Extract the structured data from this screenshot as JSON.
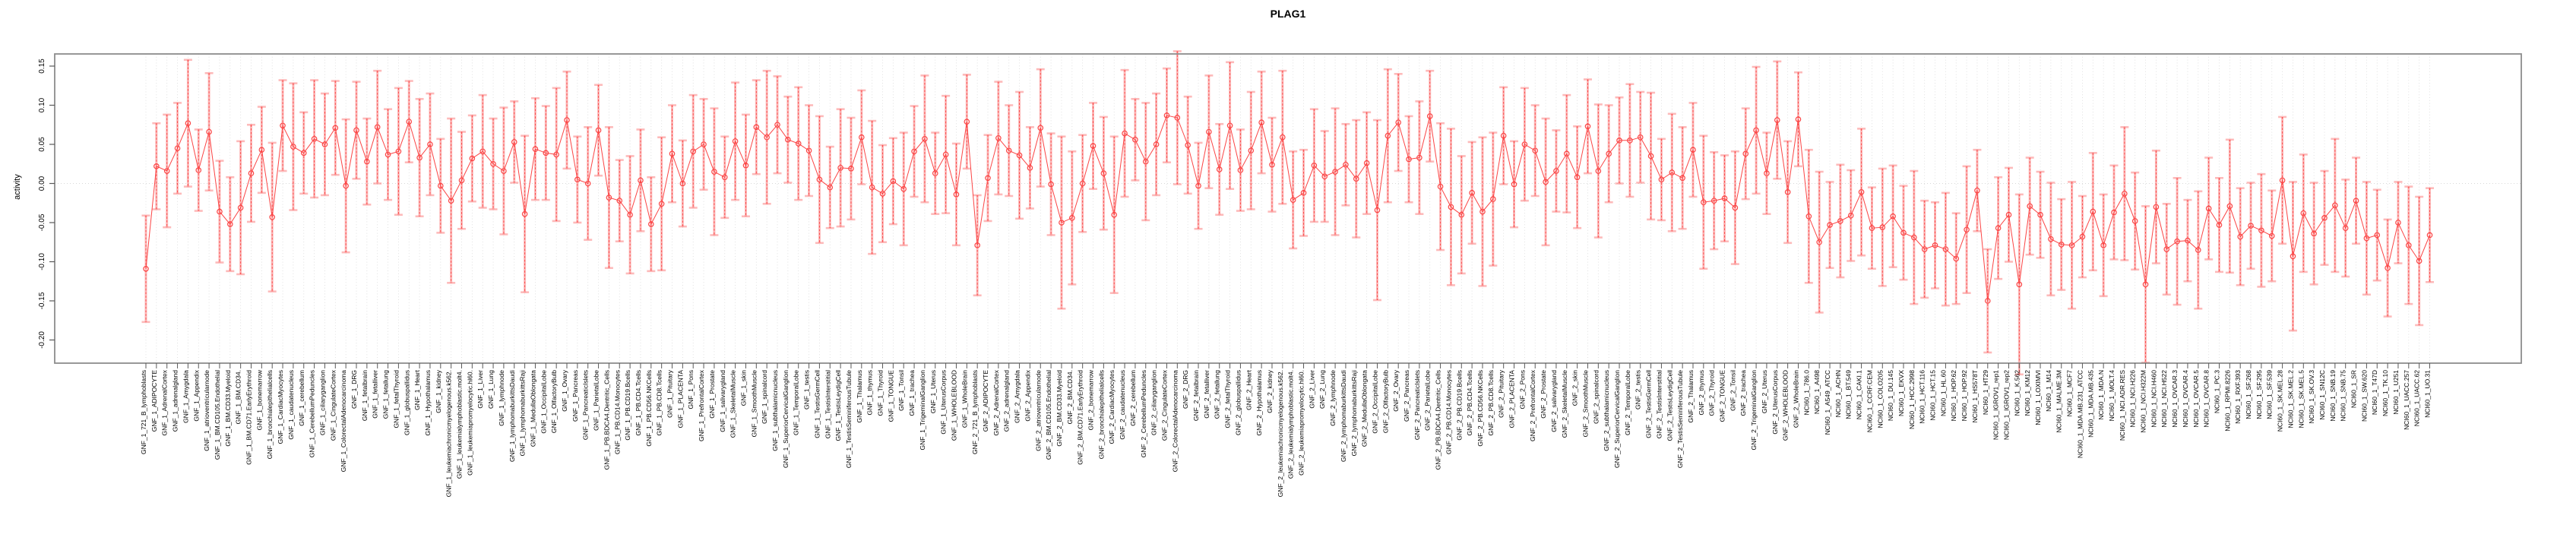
{
  "title": "PLAG1",
  "y_axis": {
    "label": "activity",
    "tick_labels": [
      "0.15",
      "0.10",
      "0.05",
      "0.00",
      "-0.05",
      "-0.10",
      "-0.15",
      "-0.20"
    ]
  },
  "colors": {
    "series_red": "#fb4545",
    "errorbar_pale": "rgba(251,90,90,0.42)",
    "grid_gray": "#d9d9d9",
    "zero_line_gray": "#cccccc",
    "box_gray": "#8c8c8c",
    "text_black": "#000000"
  },
  "chart_data": {
    "type": "line",
    "title": "PLAG1",
    "xlabel": "",
    "ylabel": "activity",
    "ylim": [
      -0.231,
      0.165
    ],
    "y_ticks": [
      0.15,
      0.1,
      0.05,
      0.0,
      -0.05,
      -0.1,
      -0.15,
      -0.2
    ],
    "grid": "vertical-dotted-per-category",
    "zero_line": "dotted",
    "legend": "none",
    "marker": "open-circle",
    "error_bars": true,
    "categories": [
      "GNF_1_721_B_lymphoblasts",
      "GNF_1_ADIPOCYTE",
      "GNF_1_AdrenalCortex",
      "GNF_1_adrenalgland",
      "GNF_1_Amygdala",
      "GNF_1_Appendix",
      "GNF_1_atrioventricularnode",
      "GNF_1_BM.CD105.Endothelial",
      "GNF_1_BM.CD33.Myeloid",
      "GNF_1_BM.CD34.",
      "GNF_1_BM.CD71.EarlyErythroid",
      "GNF_1_bonemarrow",
      "GNF_1_bronchialepithelialcells",
      "GNF_1_CardiacMyocytes",
      "GNF_1_caudatenucleus",
      "GNF_1_cerebellum",
      "GNF_1_CerebellumPeduncles",
      "GNF_1_ciliaryganglion",
      "GNF_1_CingulateCortex",
      "GNF_1_ColorectalAdenocarcinoma",
      "GNF_1_DRG",
      "GNF_1_fetalbrain",
      "GNF_1_fetalliver",
      "GNF_1_fetallung",
      "GNF_1_fetalThyroid",
      "GNF_1_globuspallidus",
      "GNF_1_Heart",
      "GNF_1_Hypothalamus",
      "GNF_1_kidney",
      "GNF_1_leukemiachronicmyelogenous.k562.",
      "GNF_1_leukemialymphoblastic.molt4.",
      "GNF_1_leukemiapromyelocytic.hl60.",
      "GNF_1_Liver",
      "GNF_1_Lung",
      "GNF_1_lymphnode",
      "GNF_1_lymphomaburkittsDaudi",
      "GNF_1_lymphomaburkittsRaji",
      "GNF_1_MedullaOblongata",
      "GNF_1_OccipitalLobe",
      "GNF_1_OlfactoryBulb",
      "GNF_1_Ovary",
      "GNF_1_Pancreas",
      "GNF_1_PancreaticIslets",
      "GNF_1_ParietalLobe",
      "GNF_1_PB.BDCA4.Dentritic_Cells",
      "GNF_1_PB.CD14.Monocytes",
      "GNF_1_PB.CD19.Bcells",
      "GNF_1_PB.CD4.Tcells",
      "GNF_1_PB.CD56.NKCells",
      "GNF_1_PB.CD8.Tcells",
      "GNF_1_Pituitary",
      "GNF_1_PLACENTA",
      "GNF_1_Pons",
      "GNF_1_PrefrontalCortex",
      "GNF_1_Prostate",
      "GNF_1_salivarygland",
      "GNF_1_SkeletalMuscle",
      "GNF_1_skin",
      "GNF_1_SmoothMuscle",
      "GNF_1_spinalcord",
      "GNF_1_subthalamicnucleus",
      "GNF_1_SuperiorCervicalGanglion",
      "GNF_1_TemporalLobe",
      "GNF_1_testis",
      "GNF_1_TestisGermCell",
      "GNF_1_TestisInterstitial",
      "GNF_1_TestisLeydigCell",
      "GNF_1_TestisSeminiferousTubule",
      "GNF_1_Thalamus",
      "GNF_1_thymus",
      "GNF_1_Thyroid",
      "GNF_1_TONGUE",
      "GNF_1_Tonsil",
      "GNF_1_trachea",
      "GNF_1_TrigeminalGanglion",
      "GNF_1_Uterus",
      "GNF_1_UterusCorpus",
      "GNF_1_WHOLEBLOOD",
      "GNF_1_WholeBrain",
      "GNF_2_721_B_lymphoblasts",
      "GNF_2_ADIPOCYTE",
      "GNF_2_AdrenalCortex",
      "GNF_2_adrenalgland",
      "GNF_2_Amygdala",
      "GNF_2_Appendix",
      "GNF_2_atrioventricularnode",
      "GNF_2_BM.CD105.Endothelial",
      "GNF_2_BM.CD33.Myeloid",
      "GNF_2_BM.CD34.",
      "GNF_2_BM.CD71.EarlyErythroid",
      "GNF_2_bonemarrow",
      "GNF_2_bronchialepithelialcells",
      "GNF_2_CardiacMyocytes",
      "GNF_2_caudatenucleus",
      "GNF_2_cerebellum",
      "GNF_2_CerebellumPeduncles",
      "GNF_2_ciliaryganglion",
      "GNF_2_CingulateCortex",
      "GNF_2_ColorectalAdenocarcinoma",
      "GNF_2_DRG",
      "GNF_2_fetalbrain",
      "GNF_2_fetalliver",
      "GNF_2_fetallung",
      "GNF_2_fetalThyroid",
      "GNF_2_globuspallidus",
      "GNF_2_Heart",
      "GNF_2_Hypothalamus",
      "GNF_2_kidney",
      "GNF_2_leukemiachronicmyelogenous.k562.",
      "GNF_2_leukemialymphoblastic.molt4.",
      "GNF_2_leukemiapromyelocytic.hl60.",
      "GNF_2_Liver",
      "GNF_2_Lung",
      "GNF_2_lymphnode",
      "GNF_2_lymphomaburkittsDaudi",
      "GNF_2_lymphomaburkittsRaji",
      "GNF_2_MedullaOblongata",
      "GNF_2_OccipitalLobe",
      "GNF_2_OlfactoryBulb",
      "GNF_2_Ovary",
      "GNF_2_Pancreas",
      "GNF_2_PancreaticIslets",
      "GNF_2_ParietalLobe",
      "GNF_2_PB.BDCA4.Dentritic_Cells",
      "GNF_2_PB.CD14.Monocytes",
      "GNF_2_PB.CD19.Bcells",
      "GNF_2_PB.CD4.Tcells",
      "GNF_2_PB.CD56.NKCells",
      "GNF_2_PB.CD8.Tcells",
      "GNF_2_Pituitary",
      "GNF_2_PLACENTA",
      "GNF_2_Pons",
      "GNF_2_PrefrontalCortex",
      "GNF_2_Prostate",
      "GNF_2_salivarygland",
      "GNF_2_SkeletalMuscle",
      "GNF_2_skin",
      "GNF_2_SmoothMuscle",
      "GNF_2_spinalcord",
      "GNF_2_subthalamicnucleus",
      "GNF_2_SuperiorCervicalGanglion",
      "GNF_2_TemporalLobe",
      "GNF_2_testis",
      "GNF_2_TestisGermCell",
      "GNF_2_TestisInterstitial",
      "GNF_2_TestisLeydigCell",
      "GNF_2_TestisSeminiferousTubule",
      "GNF_2_Thalamus",
      "GNF_2_thymus",
      "GNF_2_Thyroid",
      "GNF_2_TONGUE",
      "GNF_2_Tonsil",
      "GNF_2_trachea",
      "GNF_2_TrigeminalGanglion",
      "GNF_2_Uterus",
      "GNF_2_UterusCorpus",
      "GNF_2_WHOLEBLOOD",
      "GNF_2_WholeBrain",
      "NCI60_1_786.0",
      "NCI60_1_A498",
      "NCI60_1_A549_ATCC",
      "NCI60_1_ACHN",
      "NCI60_1_BT.549",
      "NCI60_1_CAKI.1",
      "NCI60_1_CCRF.CEM",
      "NCI60_1_COLO205",
      "NCI60_1_DU.145",
      "NCI60_1_EKVX",
      "NCI60_1_HCC.2998",
      "NCI60_1_HCT.116",
      "NCI60_1_HCT.15",
      "NCI60_1_HL.60",
      "NCI60_1_HOP.62",
      "NCI60_1_HOP.92",
      "NCI60_1_HS578T",
      "NCI60_1_HT29",
      "NCI60_1_IGROV1_rep1",
      "NCI60_1_IGROV1_rep2",
      "NCI60_1_K.562",
      "NCI60_1_KM12",
      "NCI60_1_LOXIMVI",
      "NCI60_1_M14",
      "NCI60_1_MALME.3M",
      "NCI60_1_MCF7",
      "NCI60_1_MDA.MB.231_ATCC",
      "NCI60_1_MDA.MB.435",
      "NCI60_1_MDA.N",
      "NCI60_1_MOLT.4",
      "NCI60_1_NCI.ADR.RES",
      "NCI60_1_NCI.H226",
      "NCI60_1_NCI.H322M",
      "NCI60_1_NCI.H460",
      "NCI60_1_NCI.H522",
      "NCI60_1_OVCAR.3",
      "NCI60_1_OVCAR.4",
      "NCI60_1_OVCAR.5",
      "NCI60_1_OVCAR.8",
      "NCI60_1_PC.3",
      "NCI60_1_RPMI.8226",
      "NCI60_1_RXF.393",
      "NCI60_1_SF.268",
      "NCI60_1_SF.295",
      "NCI60_1_SF.539",
      "NCI60_1_SK.MEL.28",
      "NCI60_1_SK.MEL.2",
      "NCI60_1_SK.MEL.5",
      "NCI60_1_SK.OV.3",
      "NCI60_1_SN12C",
      "NCI60_1_SNB.19",
      "NCI60_1_SNB.75",
      "NCI60_1_SR",
      "NCI60_1_SW.620",
      "NCI60_1_T47D",
      "NCI60_1_TK.10",
      "NCI60_1_U251",
      "NCI60_1_UACC.257",
      "NCI60_1_UACC.62",
      "NCI60_1_UO.31"
    ],
    "series": [
      {
        "name": "activity",
        "values": [
          -0.109,
          0.022,
          0.016,
          0.045,
          0.077,
          0.017,
          0.066,
          -0.036,
          -0.052,
          -0.031,
          0.013,
          0.043,
          -0.043,
          0.074,
          0.047,
          0.039,
          0.057,
          0.05,
          0.071,
          -0.003,
          0.068,
          0.028,
          0.072,
          0.037,
          0.041,
          0.079,
          0.033,
          0.05,
          -0.003,
          -0.022,
          0.004,
          0.032,
          0.041,
          0.025,
          0.016,
          0.053,
          -0.039,
          0.044,
          0.039,
          0.037,
          0.081,
          0.005,
          0.0,
          0.068,
          -0.018,
          -0.022,
          -0.04,
          0.004,
          -0.052,
          -0.026,
          0.038,
          0.0,
          0.041,
          0.05,
          0.015,
          0.008,
          0.054,
          0.023,
          0.072,
          0.059,
          0.075,
          0.056,
          0.051,
          0.042,
          0.005,
          -0.005,
          0.02,
          0.019,
          0.059,
          -0.005,
          -0.013,
          0.003,
          -0.007,
          0.041,
          0.057,
          0.013,
          0.037,
          -0.014,
          0.079,
          -0.079,
          0.007,
          0.058,
          0.042,
          0.036,
          0.02,
          0.071,
          -0.001,
          -0.05,
          -0.044,
          0.0,
          0.048,
          0.013,
          -0.04,
          0.064,
          0.056,
          0.028,
          0.05,
          0.087,
          0.084,
          0.049,
          -0.003,
          0.066,
          0.018,
          0.074,
          0.017,
          0.042,
          0.078,
          0.024,
          0.059,
          -0.021,
          -0.012,
          0.023,
          0.009,
          0.015,
          0.024,
          0.006,
          0.026,
          -0.034,
          0.061,
          0.078,
          0.031,
          0.033,
          0.086,
          -0.004,
          -0.03,
          -0.04,
          -0.012,
          -0.036,
          -0.02,
          0.061,
          -0.001,
          0.05,
          0.042,
          0.002,
          0.016,
          0.038,
          0.008,
          0.073,
          0.016,
          0.038,
          0.055,
          0.055,
          0.059,
          0.035,
          0.005,
          0.014,
          0.007,
          0.043,
          -0.024,
          -0.022,
          -0.019,
          -0.031,
          0.038,
          0.068,
          0.013,
          0.081,
          -0.011,
          0.082,
          -0.042,
          -0.075,
          -0.053,
          -0.048,
          -0.041,
          -0.011,
          -0.057,
          -0.056,
          -0.042,
          -0.063,
          -0.069,
          -0.084,
          -0.079,
          -0.084,
          -0.096,
          -0.059,
          -0.009,
          -0.15,
          -0.057,
          -0.04,
          -0.129,
          -0.029,
          -0.04,
          -0.071,
          -0.078,
          -0.079,
          -0.068,
          -0.036,
          -0.079,
          -0.037,
          -0.013,
          -0.048,
          -0.129,
          -0.03,
          -0.084,
          -0.074,
          -0.073,
          -0.085,
          -0.032,
          -0.053,
          -0.029,
          -0.068,
          -0.054,
          -0.06,
          -0.067,
          0.004,
          -0.093,
          -0.038,
          -0.064,
          -0.044,
          -0.028,
          -0.057,
          -0.022,
          -0.07,
          -0.066,
          -0.108,
          -0.05,
          -0.079,
          -0.099,
          -0.066
        ],
        "errors": [
          0.068,
          0.055,
          0.072,
          0.058,
          0.081,
          0.052,
          0.075,
          0.065,
          0.06,
          0.085,
          0.062,
          0.055,
          0.095,
          0.058,
          0.081,
          0.052,
          0.075,
          0.065,
          0.06,
          0.085,
          0.062,
          0.055,
          0.072,
          0.058,
          0.081,
          0.052,
          0.075,
          0.065,
          0.06,
          0.105,
          0.062,
          0.055,
          0.072,
          0.058,
          0.081,
          0.052,
          0.1,
          0.065,
          0.06,
          0.085,
          0.062,
          0.055,
          0.072,
          0.058,
          0.09,
          0.052,
          0.075,
          0.065,
          0.06,
          0.085,
          0.062,
          0.055,
          0.072,
          0.058,
          0.081,
          0.052,
          0.075,
          0.065,
          0.06,
          0.085,
          0.062,
          0.055,
          0.072,
          0.058,
          0.081,
          0.052,
          0.075,
          0.065,
          0.06,
          0.085,
          0.062,
          0.055,
          0.072,
          0.058,
          0.081,
          0.052,
          0.075,
          0.065,
          0.06,
          0.064,
          0.055,
          0.072,
          0.058,
          0.081,
          0.052,
          0.075,
          0.065,
          0.11,
          0.085,
          0.062,
          0.055,
          0.072,
          0.1,
          0.081,
          0.052,
          0.075,
          0.065,
          0.06,
          0.085,
          0.062,
          0.055,
          0.072,
          0.058,
          0.081,
          0.052,
          0.075,
          0.065,
          0.06,
          0.085,
          0.062,
          0.055,
          0.072,
          0.058,
          0.081,
          0.052,
          0.075,
          0.065,
          0.115,
          0.085,
          0.062,
          0.055,
          0.072,
          0.058,
          0.081,
          0.1,
          0.075,
          0.065,
          0.095,
          0.085,
          0.062,
          0.055,
          0.072,
          0.058,
          0.081,
          0.052,
          0.075,
          0.065,
          0.06,
          0.085,
          0.062,
          0.055,
          0.072,
          0.058,
          0.081,
          0.052,
          0.075,
          0.065,
          0.06,
          0.085,
          0.062,
          0.055,
          0.072,
          0.058,
          0.081,
          0.052,
          0.075,
          0.065,
          0.06,
          0.085,
          0.09,
          0.055,
          0.072,
          0.058,
          0.081,
          0.052,
          0.075,
          0.065,
          0.06,
          0.085,
          0.062,
          0.055,
          0.072,
          0.058,
          0.081,
          0.052,
          0.066,
          0.065,
          0.06,
          0.115,
          0.062,
          0.055,
          0.072,
          0.058,
          0.081,
          0.052,
          0.075,
          0.065,
          0.06,
          0.085,
          0.062,
          0.1,
          0.072,
          0.058,
          0.081,
          0.052,
          0.075,
          0.065,
          0.06,
          0.085,
          0.062,
          0.055,
          0.072,
          0.058,
          0.081,
          0.095,
          0.075,
          0.065,
          0.06,
          0.085,
          0.062,
          0.055,
          0.072,
          0.058,
          0.062,
          0.052,
          0.075,
          0.082,
          0.06
        ]
      }
    ]
  }
}
